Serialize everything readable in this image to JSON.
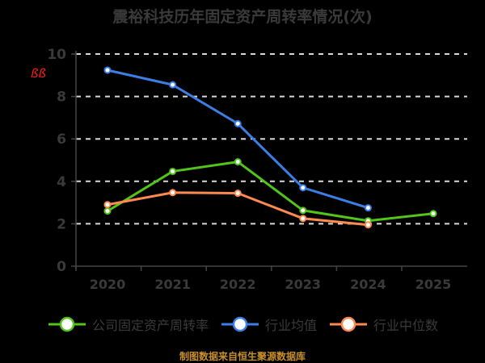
{
  "chart_data": {
    "type": "line",
    "title": "震裕科技历年固定资产周转率情况(次)",
    "categories": [
      "2020",
      "2021",
      "2022",
      "2023",
      "2024",
      "2025"
    ],
    "ylim": [
      0,
      10
    ],
    "yticks": [
      "0",
      "2",
      "4",
      "6",
      "8",
      "10"
    ],
    "grid": true,
    "grid_style": "dashed",
    "legend_position": "bottom",
    "series": [
      {
        "name": "公司固定资产周转率",
        "color": "#52c41a",
        "values": [
          2.6,
          4.47,
          4.92,
          2.63,
          2.14,
          2.48
        ]
      },
      {
        "name": "行业均值",
        "color": "#3d7ee6",
        "values": [
          9.24,
          8.55,
          6.72,
          3.7,
          2.75,
          null
        ]
      },
      {
        "name": "行业中位数",
        "color": "#ff8a50",
        "values": [
          2.9,
          3.47,
          3.44,
          2.25,
          1.95,
          null
        ]
      }
    ],
    "unit_mark": "ßß",
    "footer": "制图数据来自恒生聚源数据库"
  }
}
